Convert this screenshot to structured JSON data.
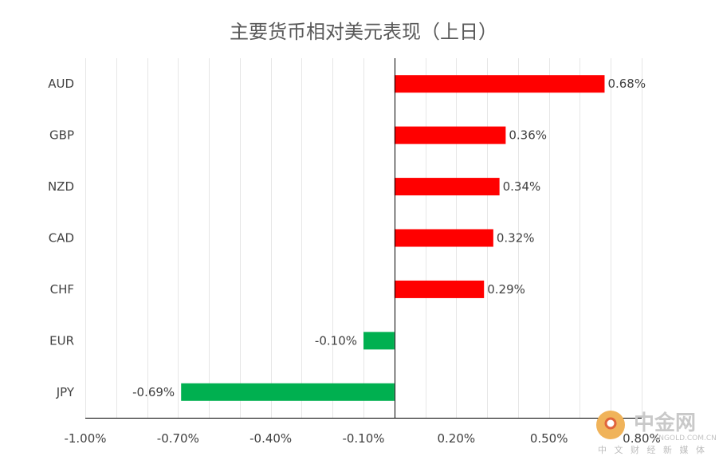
{
  "chart_data": {
    "type": "bar",
    "orientation": "horizontal",
    "title": "主要货币相对美元表现（上日）",
    "categories": [
      "AUD",
      "GBP",
      "NZD",
      "CAD",
      "CHF",
      "EUR",
      "JPY"
    ],
    "values": [
      0.68,
      0.36,
      0.34,
      0.32,
      0.29,
      -0.1,
      -0.69
    ],
    "data_labels": [
      "0.68%",
      "0.36%",
      "0.34%",
      "0.32%",
      "0.29%",
      "-0.10%",
      "-0.69%"
    ],
    "x_ticks": [
      -1.0,
      -0.7,
      -0.4,
      -0.1,
      0.2,
      0.5,
      0.8
    ],
    "x_tick_labels": [
      "-1.00%",
      "-0.70%",
      "-0.40%",
      "-0.10%",
      "0.20%",
      "0.50%",
      "0.80%"
    ],
    "xlim": [
      -1.0,
      0.8
    ],
    "grid": "vertical",
    "colors": {
      "positive": "#ff0000",
      "negative": "#00b050"
    }
  },
  "watermark": {
    "name": "中金网",
    "subtitle": "中 文 财 经 新 媒 体",
    "url": "CNGOLD.COM.CN",
    "logo_color": "#f0b35a",
    "logo_accent": "#e0643c"
  }
}
